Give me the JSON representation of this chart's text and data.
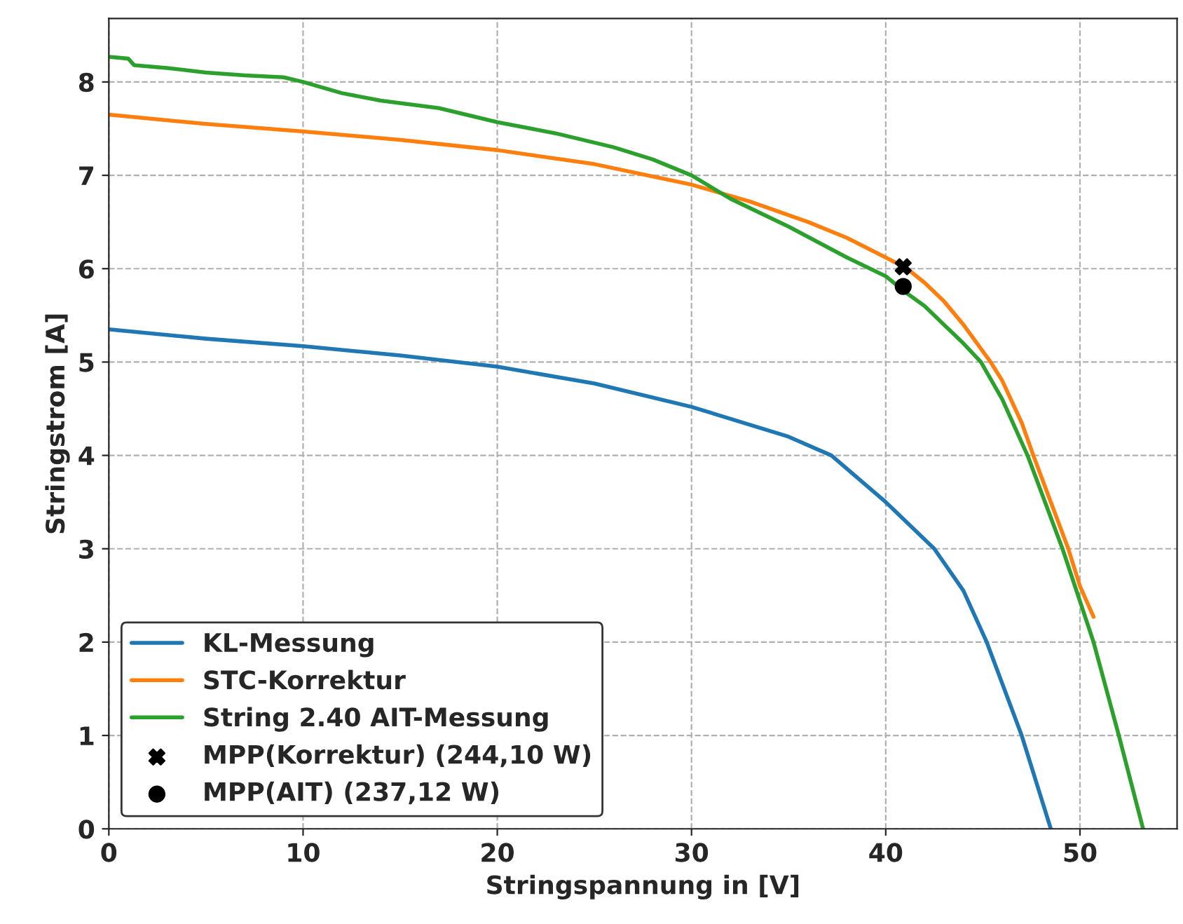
{
  "chart_data": {
    "type": "line",
    "xlabel": "Stringspannung in [V]",
    "ylabel": "Stringstrom [A]",
    "xlim": [
      0,
      55
    ],
    "ylim": [
      0,
      8.68
    ],
    "xticks": [
      0,
      10,
      20,
      30,
      40,
      50
    ],
    "yticks": [
      0,
      1,
      2,
      3,
      4,
      5,
      6,
      7,
      8
    ],
    "grid": true,
    "legend": "bottom left",
    "line_style": "solid",
    "series": [
      {
        "name": "KL-Messung",
        "color": "#1f77b4",
        "x": [
          0,
          5,
          10,
          15,
          20,
          25,
          30,
          35,
          37.2,
          40,
          42.5,
          44,
          45.2,
          47,
          48.5
        ],
        "values": [
          5.35,
          5.25,
          5.17,
          5.07,
          4.95,
          4.77,
          4.52,
          4.2,
          4.0,
          3.5,
          3.0,
          2.55,
          2.0,
          1.0,
          0
        ]
      },
      {
        "name": "STC-Korrektur",
        "color": "#ff7f0e",
        "x": [
          0,
          5,
          10,
          15,
          20,
          25,
          30,
          33,
          36,
          38,
          40,
          41.1,
          42,
          43,
          44,
          45.4,
          46,
          47,
          47.6,
          48.5,
          49.4,
          50,
          50.7
        ],
        "values": [
          7.65,
          7.55,
          7.47,
          7.38,
          7.27,
          7.12,
          6.9,
          6.72,
          6.5,
          6.33,
          6.12,
          6.0,
          5.85,
          5.65,
          5.4,
          5.0,
          4.8,
          4.35,
          4.0,
          3.5,
          3.0,
          2.6,
          2.27
        ]
      },
      {
        "name": "String 2.40 AIT-Messung",
        "color": "#2ca02c",
        "x": [
          0,
          1,
          1.3,
          3,
          5,
          7,
          9,
          10,
          12,
          14,
          17,
          20,
          23,
          26,
          28,
          30,
          32,
          35,
          38,
          40,
          41,
          42,
          43,
          44,
          44.9,
          46,
          47.3,
          49.1,
          50.7,
          52,
          53.25
        ],
        "values": [
          8.27,
          8.25,
          8.18,
          8.15,
          8.1,
          8.07,
          8.05,
          8.0,
          7.88,
          7.8,
          7.72,
          7.57,
          7.45,
          7.3,
          7.17,
          7.0,
          6.75,
          6.45,
          6.12,
          5.92,
          5.75,
          5.6,
          5.4,
          5.2,
          5.0,
          4.6,
          4.0,
          3.0,
          2.0,
          1.0,
          0
        ]
      },
      {
        "name": "MPP(Korrektur) (244,10 W)",
        "type": "scatter",
        "marker": "cross",
        "color": "#000000",
        "x": [
          40.9
        ],
        "values": [
          6.02
        ]
      },
      {
        "name": "MPP(AIT) (237,12 W)",
        "type": "scatter",
        "marker": "circle",
        "color": "#000000",
        "x": [
          40.9
        ],
        "values": [
          5.81
        ]
      }
    ]
  }
}
